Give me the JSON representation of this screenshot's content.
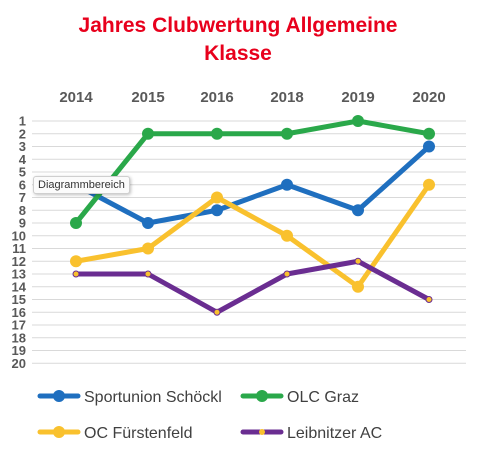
{
  "chart_data": {
    "type": "line",
    "title": "Jahres Clubwertung Allgemeine Klasse",
    "title_lines": [
      "Jahres Clubwertung Allgemeine",
      "Klasse"
    ],
    "title_color": "#e8001c",
    "categories": [
      "2014",
      "2015",
      "2016",
      "2018",
      "2019",
      "2020"
    ],
    "y_ticks": [
      "1",
      "2",
      "3",
      "4",
      "5",
      "6",
      "7",
      "8",
      "9",
      "10",
      "11",
      "12",
      "13",
      "14",
      "15",
      "16",
      "17",
      "18",
      "19",
      "20"
    ],
    "ylim": [
      1,
      20
    ],
    "y_reversed": true,
    "x_axis_position": "top",
    "grid": true,
    "legend_position": "bottom",
    "series": [
      {
        "name": "Sportunion Schöckl",
        "color": "#1f6fbf",
        "values": [
          6,
          9,
          8,
          6,
          8,
          3
        ]
      },
      {
        "name": "OLC Graz",
        "color": "#2aa84a",
        "values": [
          9,
          2,
          2,
          2,
          1,
          2
        ]
      },
      {
        "name": "OC Fürstenfeld",
        "color": "#f9c12e",
        "values": [
          12,
          11,
          7,
          10,
          14,
          6
        ]
      },
      {
        "name": "Leibnitzer AC",
        "color": "#6a2d91",
        "values": [
          13,
          13,
          16,
          13,
          12,
          15
        ]
      }
    ],
    "tooltip_text": "Diagrammbereich"
  }
}
